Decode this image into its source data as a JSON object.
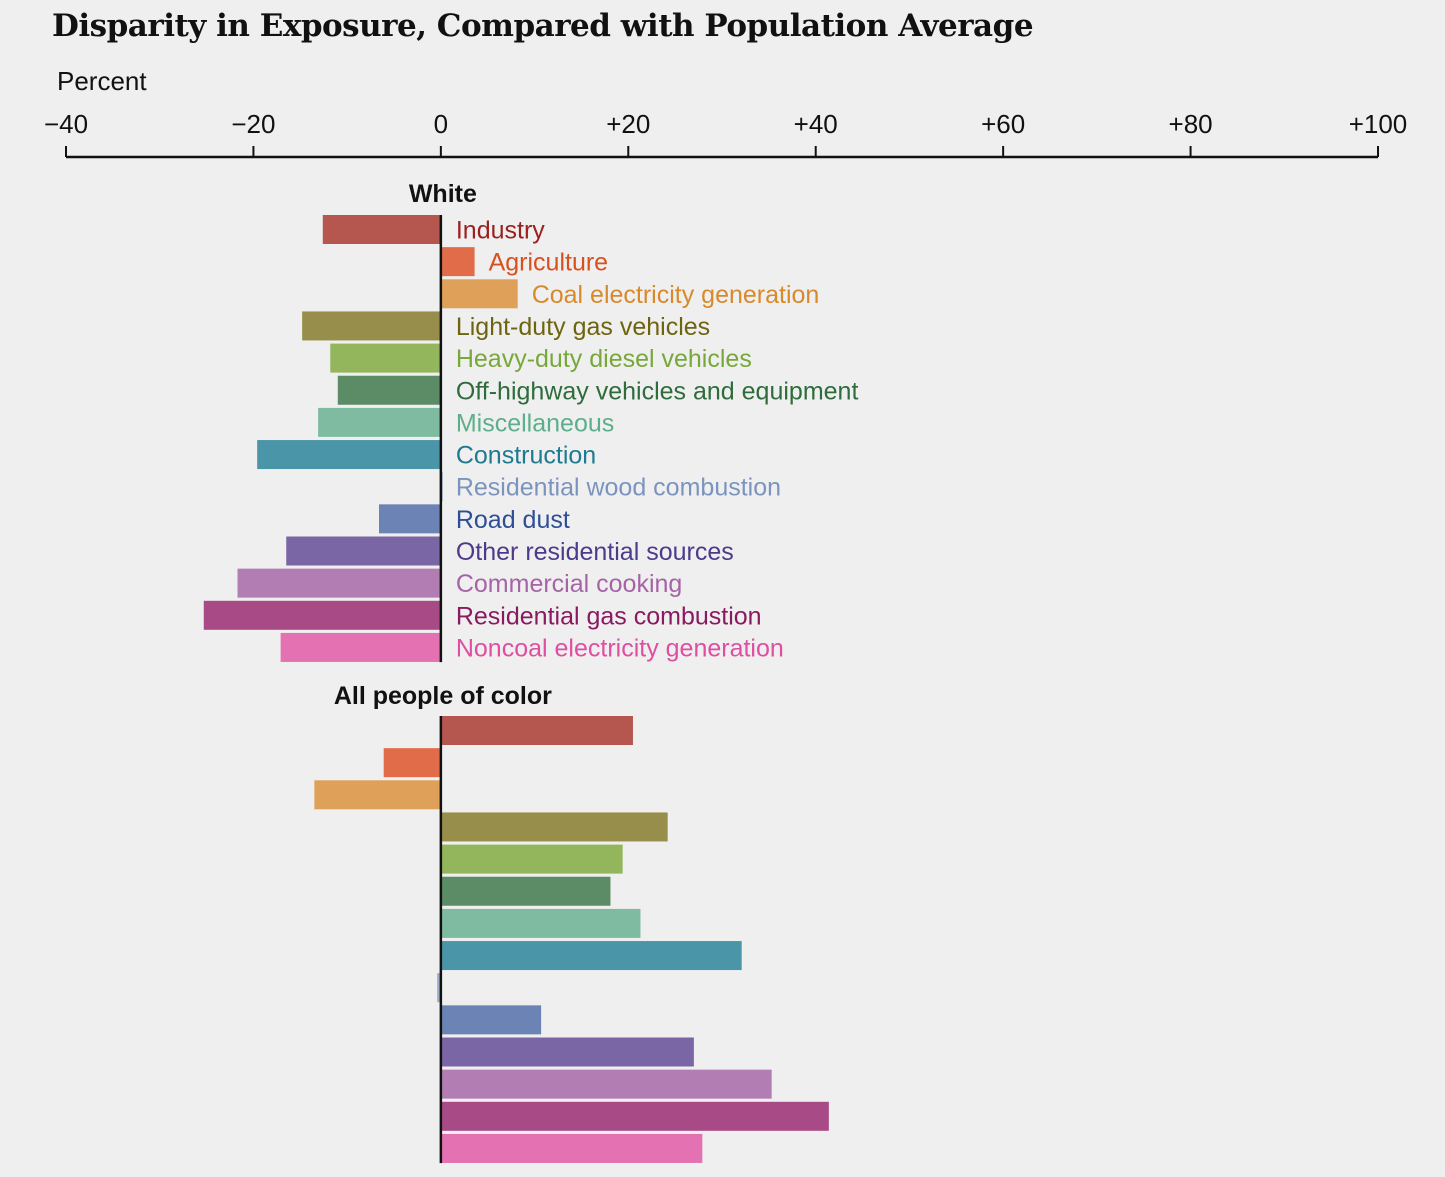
{
  "chart_data": {
    "type": "bar",
    "orientation": "horizontal",
    "title": "Disparity in Exposure, Compared with Population Average",
    "xlabel": "Percent",
    "xlim": [
      -40,
      100
    ],
    "xticks": [
      -40,
      -20,
      0,
      20,
      40,
      60,
      80,
      100
    ],
    "xtick_labels": [
      "−40",
      "−20",
      "0",
      "+20",
      "+40",
      "+60",
      "+80",
      "+100"
    ],
    "categories": [
      "Industry",
      "Agriculture",
      "Coal electricity generation",
      "Light-duty gas vehicles",
      "Heavy-duty diesel vehicles",
      "Off-highway vehicles and equipment",
      "Miscellaneous",
      "Construction",
      "Residential wood combustion",
      "Road dust",
      "Other residential sources",
      "Commercial cooking",
      "Residential gas combustion",
      "Noncoal electricity generation"
    ],
    "bar_colors": [
      "#b5574f",
      "#e06c4a",
      "#dfa15a",
      "#968e4a",
      "#93b65c",
      "#5c8c66",
      "#7fbba0",
      "#4a96a8",
      "#9fb0cc",
      "#6b83b5",
      "#7b66a5",
      "#b27db3",
      "#a84a86",
      "#e472b2"
    ],
    "label_colors": [
      "#9b2020",
      "#d8501e",
      "#d88a2a",
      "#6e6410",
      "#78a83a",
      "#2e6c3c",
      "#5caf8c",
      "#1e7a90",
      "#7b94bf",
      "#2e4f96",
      "#4e3a8a",
      "#a664a6",
      "#8a1a60",
      "#df4ea0"
    ],
    "series": [
      {
        "name": "White",
        "values": [
          -12.6,
          3.6,
          8.2,
          -14.8,
          -11.8,
          -11.0,
          -13.1,
          -19.6,
          0.2,
          -6.6,
          -16.5,
          -21.7,
          -25.3,
          -17.1
        ]
      },
      {
        "name": "All people of color",
        "values": [
          20.5,
          -6.1,
          -13.5,
          24.2,
          19.4,
          18.1,
          21.3,
          32.1,
          -0.4,
          10.7,
          27.0,
          35.3,
          41.4,
          27.9
        ]
      }
    ],
    "grid": false,
    "legend": "inline-labels"
  }
}
